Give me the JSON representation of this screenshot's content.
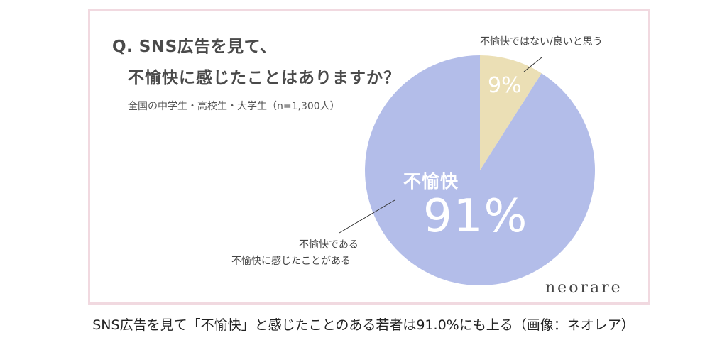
{
  "chart": {
    "title_line1": "Q. SNS広告を見て、",
    "title_line2": "不愉快に感じたことはありますか？",
    "subtitle": "全国の中学生・高校生・大学生（n=1,300人）",
    "logo": "neorare",
    "caption": "SNS広告を見て「不愉快」と感じたことのある若者は91.0%にも上る（画像：ネオレア）"
  },
  "chart_data": {
    "type": "pie",
    "title": "Q. SNS広告を見て、不愉快に感じたことはありますか？",
    "slices": [
      {
        "name": "不愉快",
        "label_line1": "不愉快である",
        "label_line2": "不愉快に感じたことがある",
        "value": 91,
        "display": "91%",
        "color": "#b3bde9"
      },
      {
        "name": "不愉快ではない/良いと思う",
        "value": 9,
        "display": "9%",
        "color": "#ebdfb5"
      }
    ]
  }
}
